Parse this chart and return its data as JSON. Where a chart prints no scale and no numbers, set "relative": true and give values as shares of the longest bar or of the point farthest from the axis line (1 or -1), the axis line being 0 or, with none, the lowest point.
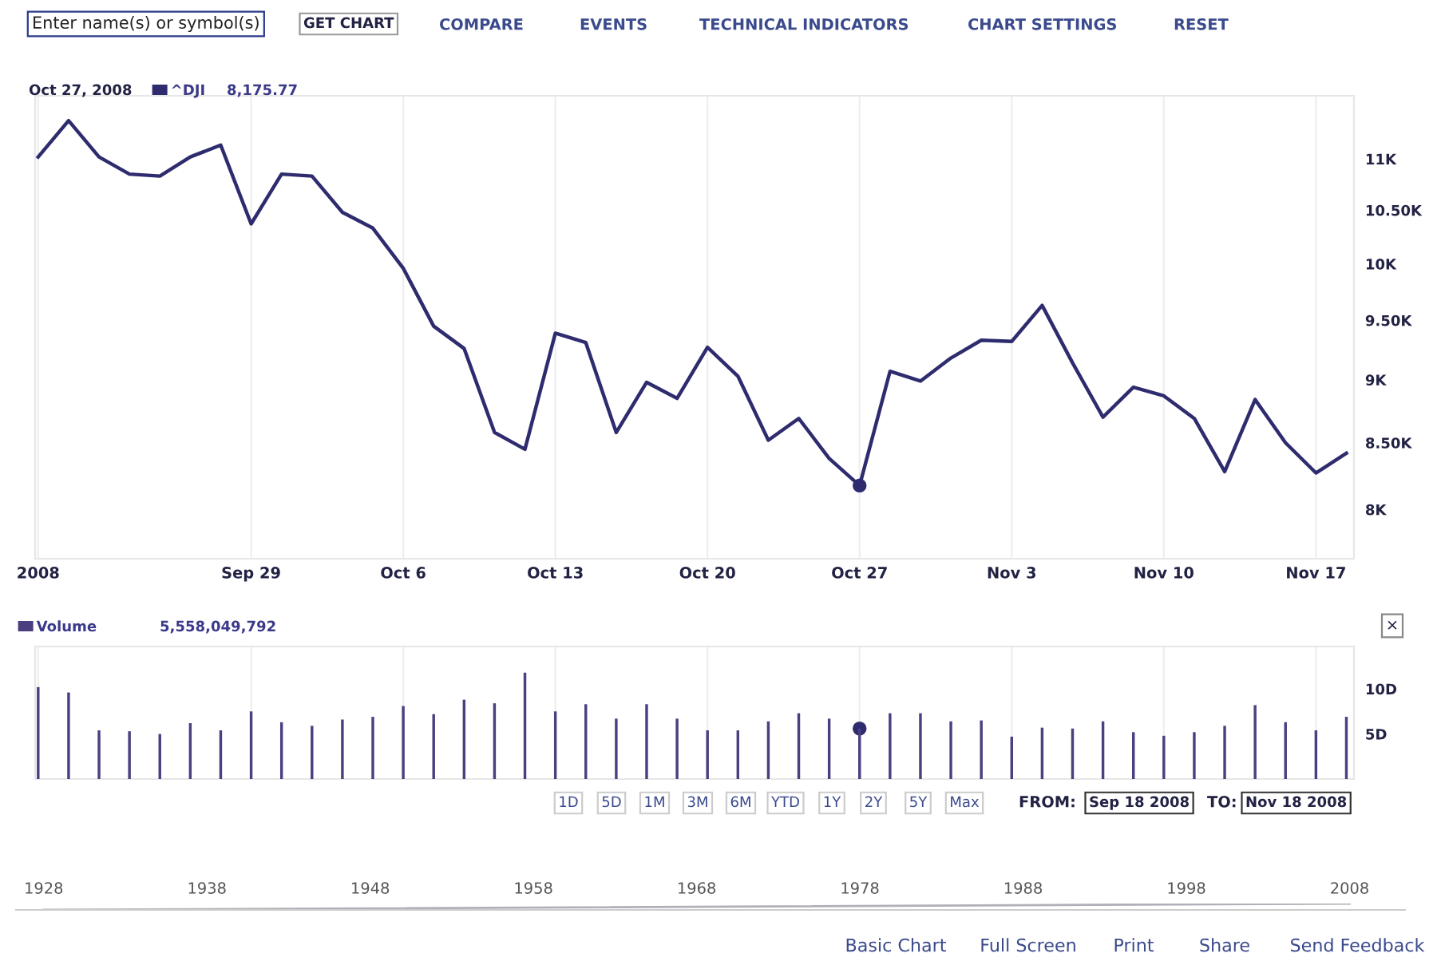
{
  "chart_data": [
    {
      "type": "line",
      "categories": [
        "2008",
        null,
        null,
        null,
        null,
        null,
        null,
        "Sep 29",
        null,
        null,
        null,
        null,
        "Oct 6",
        null,
        null,
        null,
        null,
        "Oct 13",
        null,
        null,
        null,
        null,
        "Oct 20",
        null,
        null,
        null,
        null,
        "Oct 27",
        null,
        null,
        null,
        null,
        "Nov 3",
        null,
        null,
        null,
        null,
        "Nov 10",
        null,
        null,
        null,
        null,
        "Nov 17",
        null
      ],
      "series": [
        {
          "name": "^DJI",
          "color": "#2e2c6e",
          "values": [
            11020,
            11390,
            11020,
            10850,
            10830,
            11020,
            11140,
            10370,
            10850,
            10830,
            10480,
            10330,
            9960,
            9450,
            9260,
            8580,
            8450,
            9390,
            9310,
            8580,
            8980,
            8850,
            9270,
            9030,
            8520,
            8690,
            8380,
            8175.77,
            9070,
            8990,
            9180,
            9330,
            9320,
            9630,
            9140,
            8700,
            8940,
            8870,
            8690,
            8280,
            8840,
            8500,
            8270,
            8420
          ]
        },
        {
          "type": "scatter",
          "color": "#2e2c6e",
          "x": [
            "Oct 27"
          ],
          "values": [
            8175.77
          ]
        }
      ],
      "log": true,
      "ylim": [
        7650,
        11650
      ],
      "yticks": [
        {
          "value": 8000,
          "label": "8K"
        },
        {
          "value": 8500,
          "label": "8.50K"
        },
        {
          "value": 9000,
          "label": "9K"
        },
        {
          "value": 9500,
          "label": "9.50K"
        },
        {
          "value": 10000,
          "label": "10K"
        },
        {
          "value": 10500,
          "label": "10.50K"
        },
        {
          "value": 11000,
          "label": "11K"
        }
      ],
      "grid": "x",
      "legend": "top left",
      "annotations": [
        "Enter name(s) or symbol(s)",
        "GET CHART",
        "COMPARE",
        "EVENTS",
        "TECHNICAL INDICATORS",
        "CHART SETTINGS",
        "RESET",
        "Oct 27, 2008",
        "8,175.77"
      ]
    },
    {
      "type": "bar",
      "categories": [
        "2008",
        null,
        null,
        null,
        null,
        null,
        null,
        "Sep 29",
        null,
        null,
        null,
        null,
        "Oct 6",
        null,
        null,
        null,
        null,
        "Oct 13",
        null,
        null,
        null,
        null,
        "Oct 20",
        null,
        null,
        null,
        null,
        "Oct 27",
        null,
        null,
        null,
        null,
        "Nov 3",
        null,
        null,
        null,
        null,
        "Nov 10",
        null,
        null,
        null,
        null,
        "Nov 17",
        null
      ],
      "series": [
        {
          "name": "Volume",
          "color": "#4b3f80",
          "values": [
            10.2,
            9.6,
            5.4,
            5.3,
            5.0,
            6.2,
            5.4,
            7.5,
            6.3,
            5.9,
            6.6,
            6.9,
            8.1,
            7.2,
            8.8,
            8.4,
            11.8,
            7.5,
            8.3,
            6.7,
            8.3,
            6.7,
            5.4,
            5.4,
            6.4,
            7.3,
            6.7,
            5.6,
            7.3,
            7.3,
            6.4,
            6.5,
            4.7,
            5.7,
            5.6,
            6.4,
            5.2,
            4.8,
            5.2,
            5.9,
            8.2,
            6.3,
            5.4,
            6.9
          ]
        },
        {
          "type": "scatter",
          "color": "#2e2c6e",
          "x": [
            "Oct 27"
          ],
          "values": [
            5.6
          ]
        }
      ],
      "ylim": [
        0,
        14.7
      ],
      "yticks": [
        {
          "value": 5,
          "label": "5D"
        },
        {
          "value": 10,
          "label": "10D"
        }
      ],
      "tick_labels": "y",
      "grid": "x",
      "legend": "top left",
      "annotations": [
        "5,558,049,792",
        "1D",
        "5D",
        "1M",
        "3M",
        "6M",
        "YTD",
        "1Y",
        "2Y",
        "5Y",
        "Max",
        "FROM:",
        "Sep 18 2008",
        "TO:",
        "Nov 18 2008",
        "×"
      ]
    },
    {
      "type": "line",
      "relative": true,
      "xlim": [
        1926.3,
        2011.4
      ],
      "xticks": [
        1928,
        1938,
        1948,
        1958,
        1968,
        1978,
        1988,
        1998,
        2008
      ],
      "series": [
        {
          "color": "#b0b0b8",
          "x": [
            1928,
            2008
          ],
          "values": [
            0,
            1
          ]
        }
      ],
      "annotations": [
        "Basic Chart",
        "Full Screen",
        "Print",
        "Share",
        "Send Feedback"
      ]
    }
  ]
}
